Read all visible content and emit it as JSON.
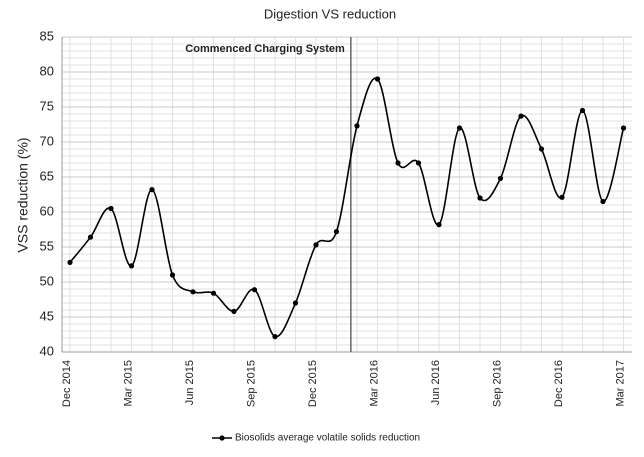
{
  "chart_data": {
    "type": "line",
    "title": "Digestion VS reduction",
    "y_label": "VSS reduction (%)",
    "annotation": "Commenced Charging System",
    "categories": [
      "Dec 2014",
      null,
      null,
      "Mar 2015",
      null,
      null,
      "Jun 2015",
      null,
      null,
      "Sep 2015",
      null,
      null,
      "Dec 2015",
      null,
      null,
      "Mar 2016",
      null,
      null,
      "Jun 2016",
      null,
      null,
      "Sep 2016",
      null,
      null,
      "Dec 2016",
      null,
      null,
      "Mar 2017"
    ],
    "series": [
      {
        "name": "Biosolids average volatile solids reduction",
        "color": "#000000",
        "values": [
          52.8,
          56.4,
          60.5,
          52.3,
          63.2,
          51,
          48.6,
          48.4,
          45.8,
          48.9,
          42.2,
          47,
          55.3,
          57.2,
          72.3,
          79,
          67,
          67,
          58.2,
          72,
          62,
          64.8,
          73.7,
          69,
          62.1,
          74.5,
          61.5,
          72
        ]
      }
    ],
    "ylim": [
      40,
      85
    ],
    "yticks": [
      40,
      45,
      50,
      55,
      60,
      65,
      70,
      75,
      80,
      85
    ],
    "grid": true,
    "legend": "bottom"
  }
}
